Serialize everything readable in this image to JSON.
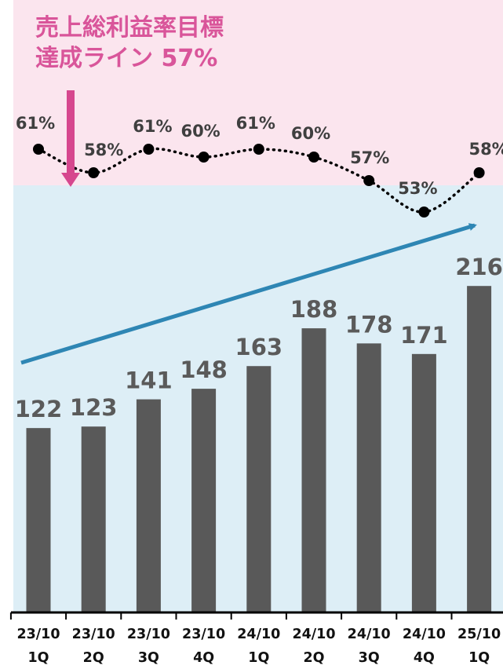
{
  "annotation": {
    "line1": "売上総利益率目標",
    "line2": "達成ライン 57%",
    "color": "#d9559a"
  },
  "colors": {
    "bar": "#595959",
    "target_zone": "#fbe5ee",
    "below_target_zone": "#ddeef6",
    "trend_arrow": "#2e86b4",
    "annotation_arrow": "#d6478e",
    "margin_line": "#000000"
  },
  "chart_data": [
    {
      "type": "bar",
      "categories": [
        [
          "23/10",
          "1Q"
        ],
        [
          "23/10",
          "2Q"
        ],
        [
          "23/10",
          "3Q"
        ],
        [
          "23/10",
          "4Q"
        ],
        [
          "24/10",
          "1Q"
        ],
        [
          "24/10",
          "2Q"
        ],
        [
          "24/10",
          "3Q"
        ],
        [
          "24/10",
          "4Q"
        ],
        [
          "25/10",
          "1Q"
        ]
      ],
      "values": [
        122,
        123,
        141,
        148,
        163,
        188,
        178,
        171,
        216
      ],
      "value_labels": [
        "122",
        "123",
        "141",
        "148",
        "163",
        "188",
        "178",
        "171",
        "216"
      ],
      "ylim": [
        0,
        240
      ],
      "trend_arrow": "upward"
    },
    {
      "type": "line",
      "style": "dotted",
      "values": [
        61,
        58,
        61,
        60,
        61,
        60,
        57,
        53,
        58
      ],
      "value_labels": [
        "61%",
        "58%",
        "61%",
        "60%",
        "61%",
        "60%",
        "57%",
        "53%",
        "58%"
      ],
      "target": 57
    }
  ]
}
